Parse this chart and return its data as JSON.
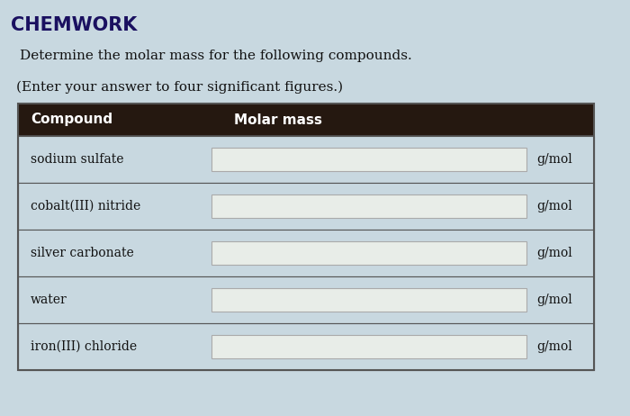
{
  "title": "CHEMWORK",
  "subtitle": "Determine the molar mass for the following compounds.",
  "instruction": "(Enter your answer to four significant figures.)",
  "header": [
    "Compound",
    "Molar mass"
  ],
  "compounds": [
    "sodium sulfate",
    "cobalt(III) nitride",
    "silver carbonate",
    "water",
    "iron(III) chloride"
  ],
  "unit": "g/mol",
  "bg_color": "#c8d8e0",
  "header_bg": "#251810",
  "header_text_color": "#ffffff",
  "row_bg": "#c8d8e0",
  "input_box_color": "#e8ede8",
  "input_box_border": "#aaaaaa",
  "table_border_color": "#555555",
  "title_color": "#1a1060",
  "text_color": "#111111",
  "title_fontsize": 15,
  "subtitle_fontsize": 11,
  "instruction_fontsize": 11,
  "table_fontsize": 10,
  "fig_width": 7.0,
  "fig_height": 4.62,
  "dpi": 100
}
